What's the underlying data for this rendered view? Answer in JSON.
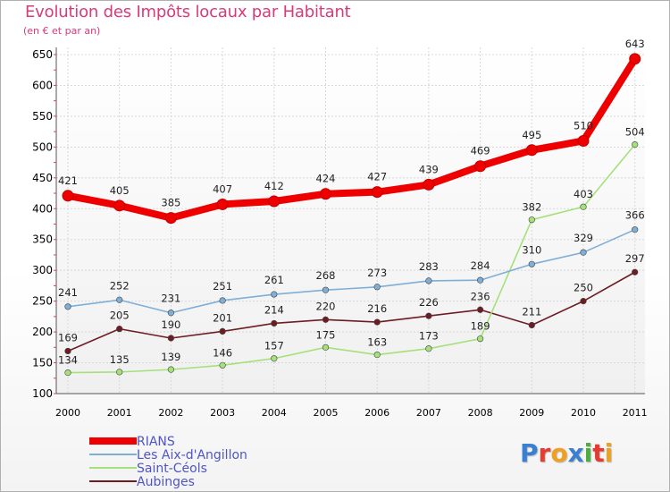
{
  "title": "Evolution des Impôts locaux par Habitant",
  "subtitle": "(en € et par an)",
  "logo": "Proxiti",
  "chart_data": {
    "type": "line",
    "categories": [
      "2000",
      "2001",
      "2002",
      "2003",
      "2004",
      "2005",
      "2006",
      "2007",
      "2008",
      "2009",
      "2010",
      "2011"
    ],
    "yticks": [
      "100",
      "150",
      "200",
      "250",
      "300",
      "350",
      "400",
      "450",
      "500",
      "550",
      "600",
      "650"
    ],
    "ylim": [
      100,
      650
    ],
    "grid": true,
    "legend": "bottom-left",
    "series": [
      {
        "name": "Aubinges",
        "color": "#6e1c24",
        "values": [
          169,
          205,
          190,
          201,
          214,
          220,
          216,
          226,
          236,
          211,
          250,
          297
        ],
        "labels": [
          "169",
          "205",
          "190",
          "201",
          "214",
          "220",
          "216",
          "226",
          "236",
          "211",
          "250",
          "297"
        ]
      },
      {
        "name": "Saint-Céols",
        "color": "#a6e07a",
        "values": [
          134,
          135,
          139,
          146,
          157,
          175,
          163,
          173,
          189,
          382,
          403,
          504
        ],
        "labels": [
          "134",
          "135",
          "139",
          "146",
          "157",
          "175",
          "163",
          "173",
          "189",
          "382",
          "403",
          "504"
        ]
      },
      {
        "name": "Les Aix-d'Angillon",
        "color": "#7faed6",
        "values": [
          241,
          252,
          231,
          251,
          261,
          268,
          273,
          283,
          284,
          310,
          329,
          366
        ],
        "labels": [
          "241",
          "252",
          "231",
          "251",
          "261",
          "268",
          "273",
          "283",
          "284",
          "310",
          "329",
          "366"
        ]
      },
      {
        "name": "RIANS",
        "color": "#ee0000",
        "values": [
          421,
          405,
          385,
          407,
          412,
          424,
          427,
          439,
          469,
          495,
          510,
          643
        ],
        "labels": [
          "421",
          "405",
          "385",
          "407",
          "412",
          "424",
          "427",
          "439",
          "469",
          "495",
          "510",
          "643"
        ]
      }
    ],
    "legend_entries": [
      {
        "name": "RIANS",
        "color": "#ee0000"
      },
      {
        "name": "Les Aix-d'Angillon",
        "color": "#7faed6"
      },
      {
        "name": "Saint-Céols",
        "color": "#a6e07a"
      },
      {
        "name": "Aubinges",
        "color": "#6e1c24"
      }
    ]
  }
}
